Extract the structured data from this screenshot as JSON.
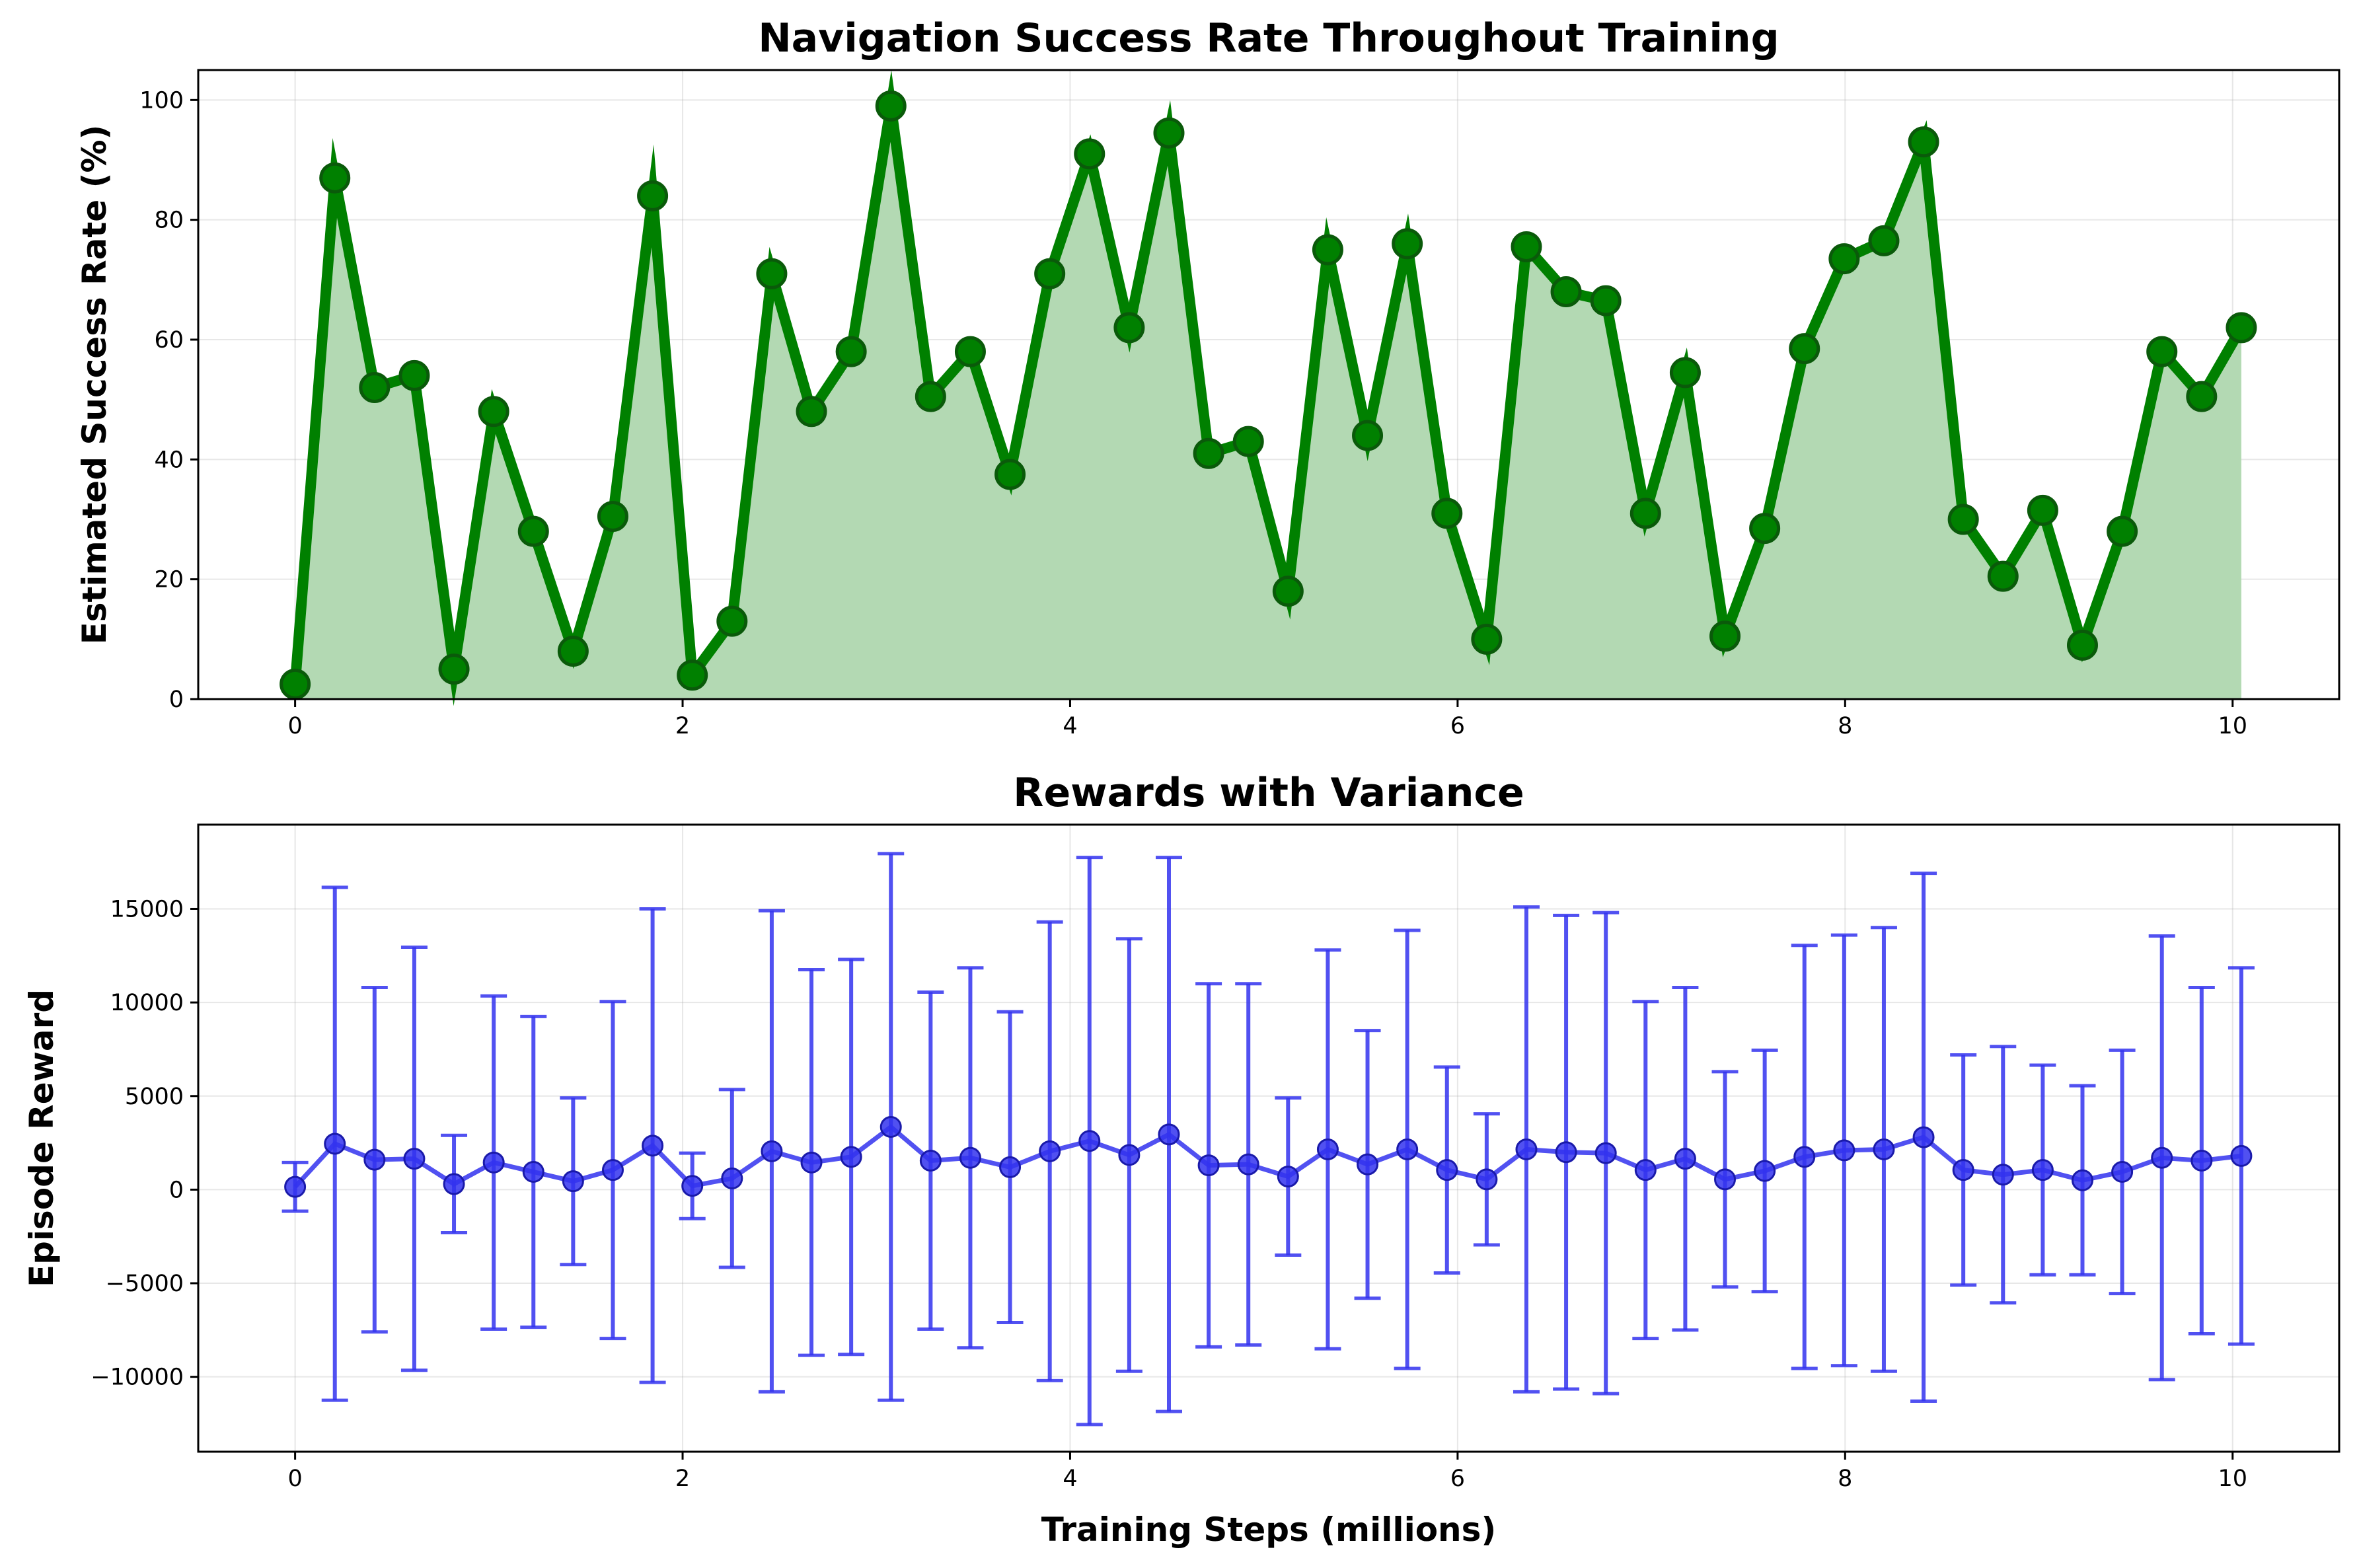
{
  "chart_data": [
    {
      "type": "line",
      "title": "Navigation Success Rate Throughout Training",
      "xlabel": "",
      "ylabel": "Estimated Success Rate (%)",
      "xlim": [
        -0.5,
        10.55
      ],
      "ylim": [
        0,
        105
      ],
      "xticks": [
        0,
        2,
        4,
        6,
        8,
        10
      ],
      "yticks": [
        0,
        20,
        40,
        60,
        80,
        100
      ],
      "grid": true,
      "fill_under": true,
      "color": "#008000",
      "fill_color": "#b3d9b3",
      "x": [
        0,
        0.205,
        0.41,
        0.615,
        0.82,
        1.025,
        1.23,
        1.435,
        1.64,
        1.845,
        2.05,
        2.255,
        2.46,
        2.665,
        2.87,
        3.075,
        3.28,
        3.485,
        3.69,
        3.895,
        4.1,
        4.305,
        4.51,
        4.715,
        4.92,
        5.125,
        5.33,
        5.535,
        5.74,
        5.945,
        6.15,
        6.355,
        6.56,
        6.765,
        6.97,
        7.175,
        7.38,
        7.585,
        7.79,
        7.995,
        8.2,
        8.405,
        8.61,
        8.815,
        9.02,
        9.225,
        9.43,
        9.635,
        9.84,
        10.045
      ],
      "values": [
        2.5,
        87,
        52,
        54,
        5,
        48,
        28,
        8,
        30.5,
        84,
        4,
        13,
        71,
        48,
        58,
        99,
        50.5,
        58,
        37.5,
        71,
        91,
        62,
        94.5,
        41,
        43,
        18,
        75,
        44,
        76,
        31,
        10,
        75.5,
        68,
        66.5,
        31,
        54.5,
        10.5,
        28.5,
        58.5,
        73.5,
        76.5,
        93,
        30,
        20.5,
        31.5,
        9,
        28,
        58,
        50.5,
        62
      ]
    },
    {
      "type": "errorbar",
      "title": "Rewards with Variance",
      "xlabel": "Training Steps (millions)",
      "ylabel": "Episode Reward",
      "xlim": [
        -0.5,
        10.55
      ],
      "ylim": [
        -14000,
        19500
      ],
      "xticks": [
        0,
        2,
        4,
        6,
        8,
        10
      ],
      "yticks": [
        -10000,
        -5000,
        0,
        5000,
        10000,
        15000
      ],
      "grid": true,
      "color": "#3333ee",
      "x": [
        0,
        0.205,
        0.41,
        0.615,
        0.82,
        1.025,
        1.23,
        1.435,
        1.64,
        1.845,
        2.05,
        2.255,
        2.46,
        2.665,
        2.87,
        3.075,
        3.28,
        3.485,
        3.69,
        3.895,
        4.1,
        4.305,
        4.51,
        4.715,
        4.92,
        5.125,
        5.33,
        5.535,
        5.74,
        5.945,
        6.15,
        6.355,
        6.56,
        6.765,
        6.97,
        7.175,
        7.38,
        7.585,
        7.79,
        7.995,
        8.2,
        8.405,
        8.61,
        8.815,
        9.02,
        9.225,
        9.43,
        9.635,
        9.84,
        10.045
      ],
      "values": [
        150,
        2450,
        1600,
        1650,
        300,
        1450,
        950,
        450,
        1050,
        2350,
        200,
        600,
        2050,
        1450,
        1750,
        3350,
        1550,
        1700,
        1200,
        2050,
        2600,
        1850,
        2950,
        1300,
        1350,
        700,
        2150,
        1350,
        2150,
        1050,
        550,
        2150,
        2000,
        1950,
        1050,
        1650,
        550,
        1000,
        1750,
        2100,
        2150,
        2800,
        1050,
        800,
        1050,
        500,
        950,
        1700,
        1550,
        1800
      ],
      "errors": [
        1300,
        13700,
        9200,
        11300,
        2600,
        8900,
        8300,
        4450,
        9000,
        12650,
        1750,
        4750,
        12850,
        10300,
        10550,
        14600,
        9000,
        10150,
        8300,
        12250,
        15150,
        11550,
        14800,
        9700,
        9650,
        4200,
        10650,
        7150,
        11700,
        5500,
        3500,
        12950,
        12650,
        12850,
        9000,
        9150,
        5750,
        6450,
        11300,
        11500,
        11850,
        14100,
        6150,
        6850,
        5600,
        5050,
        6500,
        11850,
        9250,
        10050
      ]
    }
  ]
}
